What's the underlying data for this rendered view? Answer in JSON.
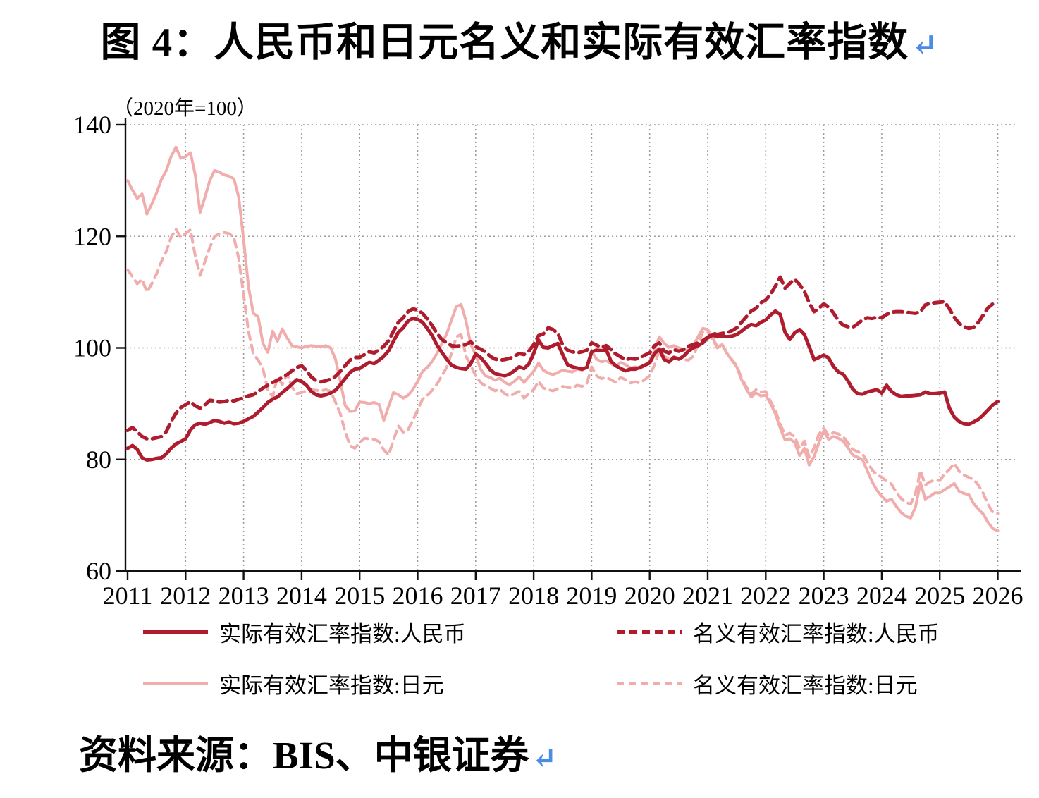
{
  "title": {
    "text": "图 4：人民币和日元名义和实际有效汇率指数",
    "paragraph_mark": "↵"
  },
  "axis_note": "（2020年=100）",
  "source": {
    "text": "资料来源：BIS、中银证券",
    "paragraph_mark": "↵"
  },
  "colors": {
    "cny": "#AE1C2E",
    "jpy": "#F1ACAC",
    "grid": "#9E9E9E",
    "axis": "#111111",
    "paragraph_mark_blue": "#4C8BE8"
  },
  "chart_data": {
    "type": "line",
    "title": "图 4：人民币和日元名义和实际有效汇率指数",
    "note": "（2020年=100）",
    "freq": "monthly",
    "x_start": "2011-01",
    "x_end": "2026-01",
    "xticks": [
      2011,
      2012,
      2013,
      2014,
      2015,
      2016,
      2017,
      2018,
      2019,
      2020,
      2021,
      2022,
      2023,
      2024,
      2025,
      2026
    ],
    "yticks": [
      60,
      80,
      100,
      120,
      140
    ],
    "ylim": [
      60,
      140
    ],
    "grid": true,
    "legend_position": "bottom",
    "series": [
      {
        "id": "reer-cny",
        "name": "实际有效汇率指数:人民币",
        "color_key": "cny",
        "style": "solid",
        "width": 5,
        "dash": "",
        "values": [
          82.0,
          82.5,
          81.8,
          80.3,
          79.9,
          80.0,
          80.2,
          80.3,
          81.0,
          82.0,
          82.8,
          83.2,
          83.7,
          85.3,
          86.2,
          86.5,
          86.3,
          86.6,
          87.0,
          86.8,
          86.5,
          86.7,
          86.4,
          86.5,
          86.8,
          87.3,
          87.7,
          88.5,
          89.3,
          90.2,
          90.8,
          91.2,
          92.0,
          92.7,
          93.5,
          94.3,
          94.0,
          93.3,
          92.2,
          91.6,
          91.4,
          91.6,
          91.9,
          92.4,
          93.4,
          94.5,
          95.6,
          96.2,
          96.3,
          96.9,
          97.4,
          97.2,
          97.8,
          98.5,
          99.5,
          101.2,
          102.8,
          103.6,
          104.8,
          105.3,
          105.1,
          104.6,
          103.5,
          102.2,
          100.5,
          99.2,
          98.0,
          96.9,
          96.5,
          96.3,
          96.2,
          97.2,
          98.9,
          98.3,
          97.3,
          96.1,
          95.4,
          95.2,
          95.0,
          95.3,
          95.9,
          96.6,
          96.3,
          97.1,
          99.0,
          101.4,
          100.1,
          100.0,
          100.4,
          100.8,
          98.8,
          97.0,
          96.6,
          96.4,
          96.2,
          96.5,
          99.3,
          99.6,
          99.5,
          99.7,
          97.6,
          96.8,
          96.3,
          95.9,
          96.2,
          96.2,
          96.5,
          96.9,
          97.3,
          99.0,
          99.8,
          97.9,
          97.5,
          98.3,
          98.0,
          98.5,
          99.4,
          100.0,
          100.4,
          100.9,
          101.8,
          102.3,
          102.0,
          102.1,
          102.0,
          102.1,
          102.4,
          103.0,
          103.7,
          104.2,
          104.0,
          104.6,
          105.0,
          105.9,
          106.6,
          106.0,
          102.8,
          101.5,
          102.7,
          103.3,
          102.4,
          100.2,
          97.9,
          98.3,
          98.7,
          98.2,
          96.7,
          95.7,
          95.3,
          94.1,
          92.6,
          91.8,
          91.7,
          92.1,
          92.3,
          92.5,
          91.9,
          93.3,
          92.2,
          91.6,
          91.3,
          91.4,
          91.4,
          91.5,
          91.6,
          92.1,
          91.8,
          91.8,
          91.9,
          92.1,
          89.2,
          87.6,
          86.8,
          86.4,
          86.3,
          86.7,
          87.2,
          88.0,
          88.9,
          89.8,
          90.4
        ]
      },
      {
        "id": "neer-cny",
        "name": "名义有效汇率指数:人民币",
        "color_key": "cny",
        "style": "dashed",
        "width": 5,
        "dash": "13 8",
        "values": [
          85.2,
          85.7,
          85.0,
          84.1,
          83.7,
          83.7,
          83.9,
          84.1,
          85.0,
          86.8,
          88.3,
          89.3,
          89.8,
          90.4,
          89.6,
          89.2,
          89.8,
          90.6,
          90.5,
          90.3,
          90.4,
          90.6,
          90.5,
          90.8,
          91.0,
          91.4,
          91.6,
          92.2,
          92.8,
          93.3,
          93.8,
          94.2,
          94.7,
          95.2,
          95.9,
          96.5,
          96.8,
          95.9,
          94.8,
          94.1,
          93.9,
          94.1,
          94.4,
          94.9,
          95.8,
          96.8,
          97.8,
          98.3,
          98.3,
          98.8,
          99.3,
          99.1,
          99.6,
          100.3,
          101.3,
          103.0,
          104.6,
          105.4,
          106.5,
          107.0,
          106.8,
          106.2,
          105.2,
          104.0,
          102.6,
          101.5,
          100.9,
          100.4,
          100.3,
          100.4,
          100.6,
          101.1,
          100.2,
          99.8,
          99.3,
          98.5,
          98.0,
          97.8,
          97.9,
          98.1,
          98.5,
          99.0,
          98.8,
          99.4,
          100.6,
          102.2,
          102.5,
          103.6,
          103.3,
          102.6,
          100.5,
          99.6,
          99.3,
          99.1,
          99.3,
          99.6,
          100.9,
          100.5,
          100.1,
          100.4,
          99.7,
          98.9,
          98.4,
          97.9,
          98.1,
          98.0,
          98.3,
          98.7,
          99.1,
          100.4,
          100.9,
          99.4,
          99.1,
          99.7,
          99.4,
          99.7,
          100.3,
          100.6,
          100.9,
          101.3,
          101.9,
          102.6,
          102.4,
          102.6,
          102.7,
          103.1,
          103.6,
          104.6,
          105.6,
          106.6,
          107.1,
          108.1,
          108.6,
          109.6,
          111.1,
          112.7,
          110.7,
          111.6,
          112.3,
          111.4,
          110.1,
          108.1,
          106.5,
          107.1,
          107.9,
          107.3,
          106.3,
          104.9,
          104.1,
          103.8,
          103.7,
          104.3,
          105.0,
          105.4,
          105.3,
          105.5,
          105.4,
          106.0,
          106.4,
          106.5,
          106.5,
          106.4,
          106.3,
          106.2,
          106.5,
          107.7,
          108.0,
          108.1,
          108.2,
          108.3,
          107.0,
          105.5,
          104.4,
          103.8,
          103.5,
          103.7,
          104.6,
          105.9,
          107.2,
          107.9,
          108.1
        ]
      },
      {
        "id": "reer-jpy",
        "name": "实际有效汇率指数:日元",
        "color_key": "jpy",
        "style": "solid",
        "width": 4,
        "dash": "",
        "values": [
          130.0,
          128.3,
          126.8,
          127.6,
          124.0,
          125.8,
          127.8,
          130.2,
          131.8,
          134.3,
          136.0,
          134.0,
          134.3,
          135.0,
          131.0,
          124.3,
          127.0,
          130.0,
          131.8,
          131.5,
          131.0,
          130.8,
          130.3,
          127.0,
          119.4,
          111.0,
          106.2,
          105.6,
          100.8,
          99.2,
          103.0,
          101.2,
          103.4,
          101.8,
          100.4,
          100.2,
          100.0,
          100.3,
          100.4,
          100.3,
          100.2,
          100.4,
          100.0,
          98.0,
          94.0,
          89.7,
          88.6,
          88.7,
          90.3,
          90.2,
          90.0,
          90.2,
          89.9,
          87.0,
          89.5,
          92.0,
          91.6,
          91.0,
          91.5,
          92.5,
          94.0,
          95.8,
          96.5,
          97.6,
          99.0,
          100.8,
          102.5,
          105.0,
          107.4,
          107.8,
          104.8,
          100.6,
          98.8,
          96.2,
          95.0,
          94.7,
          94.2,
          94.6,
          93.8,
          93.4,
          94.0,
          94.8,
          93.8,
          94.8,
          95.8,
          97.3,
          96.0,
          95.5,
          95.2,
          95.6,
          96.0,
          95.8,
          95.7,
          96.2,
          96.0,
          96.5,
          99.4,
          98.0,
          97.5,
          97.7,
          97.2,
          96.7,
          97.4,
          97.0,
          96.4,
          96.6,
          96.3,
          96.9,
          97.6,
          99.6,
          102.0,
          100.8,
          100.1,
          100.4,
          100.0,
          99.7,
          99.6,
          100.3,
          102.0,
          103.5,
          103.3,
          101.8,
          100.2,
          100.6,
          99.0,
          97.8,
          96.6,
          94.3,
          92.6,
          91.2,
          91.9,
          91.4,
          91.5,
          90.0,
          88.2,
          85.6,
          83.5,
          83.7,
          83.0,
          80.7,
          82.0,
          79.0,
          80.5,
          83.0,
          85.1,
          83.6,
          84.1,
          83.8,
          83.3,
          82.1,
          80.8,
          80.4,
          80.0,
          78.0,
          76.0,
          74.5,
          73.4,
          72.5,
          72.9,
          71.6,
          70.5,
          69.8,
          69.5,
          71.5,
          75.8,
          72.9,
          73.4,
          74.0,
          74.0,
          74.6,
          75.1,
          75.7,
          74.3,
          73.9,
          73.7,
          72.1,
          71.1,
          70.2,
          68.7,
          67.6,
          67.2
        ]
      },
      {
        "id": "neer-jpy",
        "name": "名义有效汇率指数:日元",
        "color_key": "jpy",
        "style": "dashed",
        "width": 4,
        "dash": "11 8",
        "values": [
          114.0,
          112.8,
          111.5,
          112.3,
          110.0,
          111.5,
          113.3,
          115.5,
          117.3,
          119.8,
          121.3,
          119.8,
          120.5,
          121.2,
          116.5,
          113.0,
          115.5,
          118.0,
          120.0,
          120.5,
          120.7,
          120.5,
          119.8,
          116.0,
          109.5,
          103.0,
          99.0,
          97.8,
          96.3,
          92.5,
          91.2,
          94.8,
          93.4,
          95.3,
          93.0,
          91.8,
          92.0,
          92.3,
          92.5,
          92.4,
          92.3,
          92.5,
          92.2,
          90.3,
          88.2,
          85.0,
          82.5,
          82.0,
          83.0,
          83.8,
          83.7,
          83.6,
          83.2,
          81.7,
          80.8,
          83.5,
          86.0,
          84.9,
          85.3,
          87.0,
          88.9,
          90.8,
          91.5,
          92.4,
          93.5,
          95.0,
          96.5,
          99.0,
          102.0,
          102.4,
          98.5,
          96.8,
          95.0,
          93.8,
          93.2,
          92.8,
          92.3,
          92.6,
          91.8,
          91.3,
          91.8,
          92.2,
          91.0,
          91.8,
          92.5,
          94.0,
          92.8,
          92.5,
          92.3,
          92.7,
          93.1,
          92.9,
          92.8,
          93.3,
          93.1,
          93.6,
          96.6,
          95.0,
          94.5,
          94.7,
          94.3,
          93.8,
          94.7,
          94.3,
          93.7,
          93.9,
          93.7,
          94.3,
          95.0,
          97.0,
          99.6,
          98.5,
          98.0,
          98.4,
          98.1,
          97.9,
          97.8,
          98.5,
          100.6,
          102.9,
          102.9,
          101.5,
          100.0,
          100.5,
          99.0,
          97.9,
          96.8,
          94.6,
          93.0,
          91.7,
          92.5,
          92.1,
          92.2,
          90.4,
          88.8,
          86.3,
          84.4,
          84.7,
          84.1,
          82.0,
          83.3,
          80.4,
          82.1,
          84.5,
          85.6,
          84.3,
          84.8,
          84.6,
          84.1,
          83.0,
          81.8,
          81.4,
          81.0,
          79.6,
          78.1,
          77.3,
          76.8,
          76.1,
          75.6,
          74.1,
          73.0,
          72.3,
          72.0,
          74.0,
          78.0,
          75.4,
          76.0,
          76.3,
          76.2,
          77.4,
          78.2,
          79.3,
          77.9,
          77.2,
          76.8,
          76.4,
          75.4,
          73.9,
          71.9,
          70.5,
          70.3
        ]
      }
    ]
  }
}
